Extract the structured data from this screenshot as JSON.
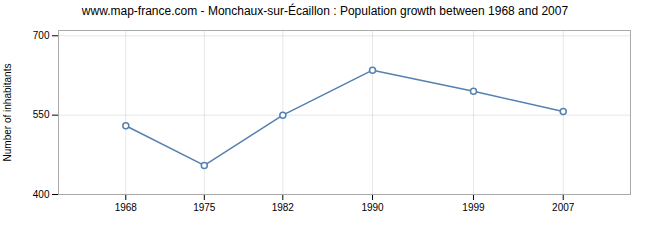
{
  "chart_data": {
    "type": "line",
    "title": "www.map-france.com - Monchaux-sur-Écaillon : Population growth between 1968 and 2007",
    "y_label": "Number of inhabitants",
    "x": [
      1968,
      1975,
      1982,
      1990,
      1999,
      2007
    ],
    "values": [
      530,
      455,
      550,
      635,
      595,
      557
    ],
    "color": "#5580b0",
    "marker": "circle",
    "xlim": [
      1962,
      2013
    ],
    "xticks": [
      1968,
      1975,
      1982,
      1990,
      1999,
      2007
    ],
    "ylim": [
      400,
      710
    ],
    "yticks": [
      400,
      550,
      700
    ],
    "grid": true
  }
}
